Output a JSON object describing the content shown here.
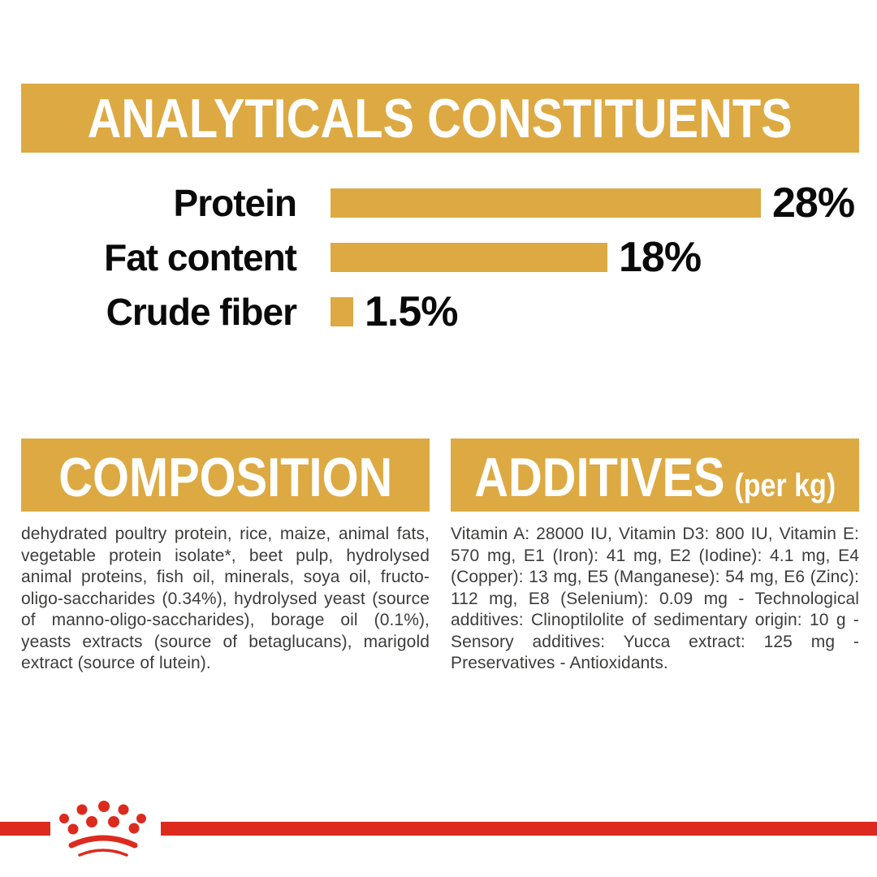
{
  "colors": {
    "gold": "#DDA942",
    "red": "#DD2A1E",
    "body_text": "#3C3C3B",
    "heading_text": "#FFFFFF",
    "label_text": "#0A0A0A",
    "background": "#FFFFFF"
  },
  "chart_data": {
    "type": "bar",
    "orientation": "horizontal",
    "title": "ANALYTICALS CONSTITUENTS",
    "categories": [
      "Protein",
      "Fat content",
      "Crude fiber"
    ],
    "values": [
      28,
      18,
      1.5
    ],
    "value_labels": [
      "28%",
      "18%",
      "1.5%"
    ],
    "unit": "%",
    "xlim": [
      0,
      28
    ],
    "bar_color": "#DDA942",
    "grid": false,
    "legend": false
  },
  "composition": {
    "title": "COMPOSITION",
    "body": "dehydrated poultry protein, rice, maize, animal fats, vegetable protein isolate*, beet pulp, hydrolysed animal proteins, fish oil, minerals, soya oil, fructo-oligo-saccharides (0.34%), hydrolysed yeast (source of manno-oligo-saccharides), borage oil (0.1%), yeasts extracts (source of betaglucans), marigold extract (source of lutein)."
  },
  "additives": {
    "title": "ADDITIVES",
    "suffix": "(per kg)",
    "body": "Vitamin A: 28000 IU, Vitamin D3: 800 IU, Vitamin E: 570 mg, E1 (Iron): 41 mg, E2 (Iodine): 4.1 mg, E4 (Copper): 13 mg, E5 (Manganese): 54 mg, E6 (Zinc): 112 mg, E8 (Selenium): 0.09 mg - Technological additives: Clinoptilolite of sedimentary origin: 10 g - Sensory additives: Yucca extract: 125 mg - Preservatives - Antioxidants."
  },
  "footer": {
    "brand_logo": "royal-canin-crown"
  }
}
